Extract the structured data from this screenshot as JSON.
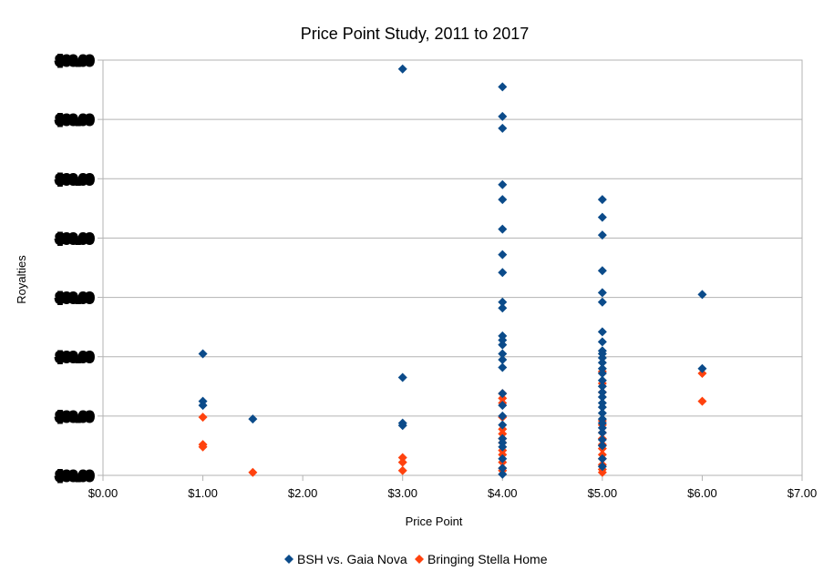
{
  "chart_data": {
    "type": "scatter",
    "title": "Price Point Study, 2011 to 2017",
    "xlabel": "Price Point",
    "ylabel": "Royalties",
    "xlim": [
      0,
      7
    ],
    "ylim": [
      0,
      7
    ],
    "x_ticks": [
      "$0.00",
      "$1.00",
      "$2.00",
      "$3.00",
      "$4.00",
      "$5.00",
      "$6.00",
      "$7.00"
    ],
    "y_ticks": [
      "$00.00",
      "$00.00",
      "$00.00",
      "$00.00",
      "$00.00",
      "$00.00",
      "$00.00",
      "$00.00"
    ],
    "y_values_note": "",
    "grid": "horizontal",
    "legend_position": "bottom",
    "series": [
      {
        "name": "BSH vs. Gaia Nova",
        "color": "#0b4b8a",
        "points": [
          [
            1.0,
            2.05
          ],
          [
            1.0,
            1.25
          ],
          [
            1.0,
            1.18
          ],
          [
            1.5,
            0.95
          ],
          [
            3.0,
            6.85
          ],
          [
            3.0,
            1.65
          ],
          [
            3.0,
            0.88
          ],
          [
            3.0,
            0.84
          ],
          [
            4.0,
            6.55
          ],
          [
            4.0,
            6.05
          ],
          [
            4.0,
            5.85
          ],
          [
            4.0,
            4.9
          ],
          [
            4.0,
            4.65
          ],
          [
            4.0,
            4.15
          ],
          [
            4.0,
            3.72
          ],
          [
            4.0,
            3.42
          ],
          [
            4.0,
            2.92
          ],
          [
            4.0,
            2.82
          ],
          [
            4.0,
            2.35
          ],
          [
            4.0,
            2.28
          ],
          [
            4.0,
            2.2
          ],
          [
            4.0,
            2.05
          ],
          [
            4.0,
            1.95
          ],
          [
            4.0,
            1.82
          ],
          [
            4.0,
            1.38
          ],
          [
            4.0,
            1.18
          ],
          [
            4.0,
            1.0
          ],
          [
            4.0,
            0.85
          ],
          [
            4.0,
            0.62
          ],
          [
            4.0,
            0.55
          ],
          [
            4.0,
            0.48
          ],
          [
            4.0,
            0.28
          ],
          [
            4.0,
            0.12
          ],
          [
            4.0,
            0.02
          ],
          [
            5.0,
            4.65
          ],
          [
            5.0,
            4.35
          ],
          [
            5.0,
            4.05
          ],
          [
            5.0,
            3.45
          ],
          [
            5.0,
            3.08
          ],
          [
            5.0,
            2.92
          ],
          [
            5.0,
            2.42
          ],
          [
            5.0,
            2.25
          ],
          [
            5.0,
            2.1
          ],
          [
            5.0,
            2.05
          ],
          [
            5.0,
            1.98
          ],
          [
            5.0,
            1.9
          ],
          [
            5.0,
            1.8
          ],
          [
            5.0,
            1.72
          ],
          [
            5.0,
            1.6
          ],
          [
            5.0,
            1.5
          ],
          [
            5.0,
            1.4
          ],
          [
            5.0,
            1.32
          ],
          [
            5.0,
            1.22
          ],
          [
            5.0,
            1.15
          ],
          [
            5.0,
            1.05
          ],
          [
            5.0,
            0.95
          ],
          [
            5.0,
            0.88
          ],
          [
            5.0,
            0.8
          ],
          [
            5.0,
            0.72
          ],
          [
            5.0,
            0.6
          ],
          [
            5.0,
            0.5
          ],
          [
            5.0,
            0.28
          ],
          [
            5.0,
            0.15
          ],
          [
            6.0,
            3.05
          ],
          [
            6.0,
            1.8
          ]
        ]
      },
      {
        "name": "Bringing Stella Home",
        "color": "#ff420e",
        "points": [
          [
            1.0,
            0.98
          ],
          [
            1.0,
            0.52
          ],
          [
            1.0,
            0.48
          ],
          [
            1.5,
            0.05
          ],
          [
            3.0,
            0.3
          ],
          [
            3.0,
            0.22
          ],
          [
            3.0,
            0.08
          ],
          [
            4.0,
            1.38
          ],
          [
            4.0,
            1.3
          ],
          [
            4.0,
            1.22
          ],
          [
            4.0,
            0.98
          ],
          [
            4.0,
            0.78
          ],
          [
            4.0,
            0.7
          ],
          [
            4.0,
            0.62
          ],
          [
            4.0,
            0.55
          ],
          [
            4.0,
            0.42
          ],
          [
            4.0,
            0.35
          ],
          [
            4.0,
            0.22
          ],
          [
            4.0,
            0.12
          ],
          [
            4.0,
            0.08
          ],
          [
            5.0,
            1.75
          ],
          [
            5.0,
            1.55
          ],
          [
            5.0,
            1.4
          ],
          [
            5.0,
            0.92
          ],
          [
            5.0,
            0.85
          ],
          [
            5.0,
            0.72
          ],
          [
            5.0,
            0.62
          ],
          [
            5.0,
            0.52
          ],
          [
            5.0,
            0.45
          ],
          [
            5.0,
            0.35
          ],
          [
            5.0,
            0.28
          ],
          [
            5.0,
            0.18
          ],
          [
            5.0,
            0.1
          ],
          [
            5.0,
            0.05
          ],
          [
            6.0,
            1.72
          ],
          [
            6.0,
            1.25
          ]
        ]
      }
    ]
  }
}
